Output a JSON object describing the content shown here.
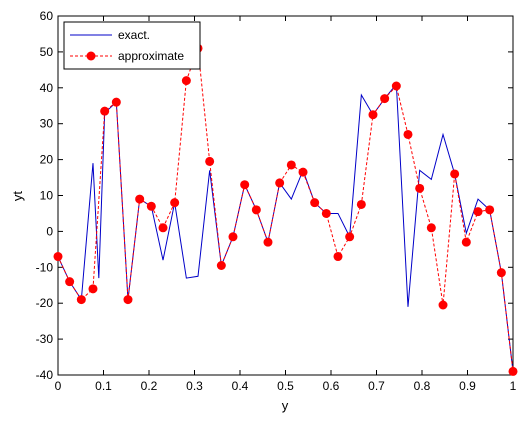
{
  "chart_data": {
    "type": "line",
    "xlabel": "y",
    "ylabel": "yt",
    "xlim": [
      0,
      1
    ],
    "ylim": [
      -40,
      60
    ],
    "xticks": [
      0,
      0.1,
      0.2,
      0.3,
      0.4,
      0.5,
      0.6,
      0.7,
      0.8,
      0.9,
      1
    ],
    "xtick_labels": [
      "0",
      "0.1",
      "0.2",
      "0.3",
      "0.4",
      "0.5",
      "0.6",
      "0.7",
      "0.8",
      "0.9",
      "1"
    ],
    "yticks": [
      -40,
      -30,
      -20,
      -10,
      0,
      10,
      20,
      30,
      40,
      50,
      60
    ],
    "ytick_labels": [
      "-40",
      "-30",
      "-20",
      "-10",
      "0",
      "10",
      "20",
      "30",
      "40",
      "50",
      "60"
    ],
    "grid": false,
    "legend_position": "top-left",
    "series": [
      {
        "name": "exact.",
        "style": "solid line",
        "color": "#0000c8",
        "x": [
          0,
          0.0256,
          0.0513,
          0.0769,
          0.0897,
          0.1026,
          0.1282,
          0.1538,
          0.1795,
          0.2051,
          0.2308,
          0.2564,
          0.2821,
          0.3077,
          0.3333,
          0.359,
          0.3846,
          0.4103,
          0.4359,
          0.4615,
          0.4872,
          0.5128,
          0.5385,
          0.5641,
          0.5897,
          0.6154,
          0.641,
          0.6667,
          0.6923,
          0.7179,
          0.7436,
          0.7692,
          0.7949,
          0.8205,
          0.8462,
          0.8718,
          0.8974,
          0.9231,
          0.9487,
          0.9744,
          1
        ],
        "y": [
          -7,
          -14,
          -19,
          19,
          -13,
          33,
          36,
          -19,
          9,
          7,
          -8,
          8,
          -13,
          -12.5,
          17,
          -9.5,
          -1.5,
          13,
          6,
          -3,
          13.5,
          9,
          17,
          8,
          5,
          5,
          -1.5,
          38,
          32.5,
          37,
          41,
          -21,
          17,
          14.5,
          27,
          16,
          -0.5,
          9,
          6,
          -11.5,
          -39
        ]
      },
      {
        "name": "approximate",
        "style": "dashed line with circle markers",
        "color": "#ff0000",
        "x": [
          0,
          0.0256,
          0.0513,
          0.0769,
          0.1026,
          0.1282,
          0.1538,
          0.1795,
          0.2051,
          0.2308,
          0.2564,
          0.2821,
          0.3077,
          0.3333,
          0.359,
          0.3846,
          0.4103,
          0.4359,
          0.4615,
          0.4872,
          0.5128,
          0.5385,
          0.5641,
          0.5897,
          0.6154,
          0.641,
          0.6667,
          0.6923,
          0.7179,
          0.7436,
          0.7692,
          0.7949,
          0.8205,
          0.8462,
          0.8718,
          0.8974,
          0.9231,
          0.9487,
          0.9744,
          1
        ],
        "y": [
          -7,
          -14,
          -19,
          -16,
          33.5,
          36,
          -19,
          9,
          7,
          1,
          8,
          42,
          51,
          19.5,
          -9.5,
          -1.5,
          13,
          6,
          -3,
          13.5,
          18.5,
          16.5,
          8,
          5,
          -7,
          -1.5,
          7.5,
          32.5,
          37,
          40.5,
          27,
          12,
          1,
          -20.5,
          16,
          -3,
          5.5,
          6,
          -11.5,
          -39
        ]
      }
    ]
  }
}
